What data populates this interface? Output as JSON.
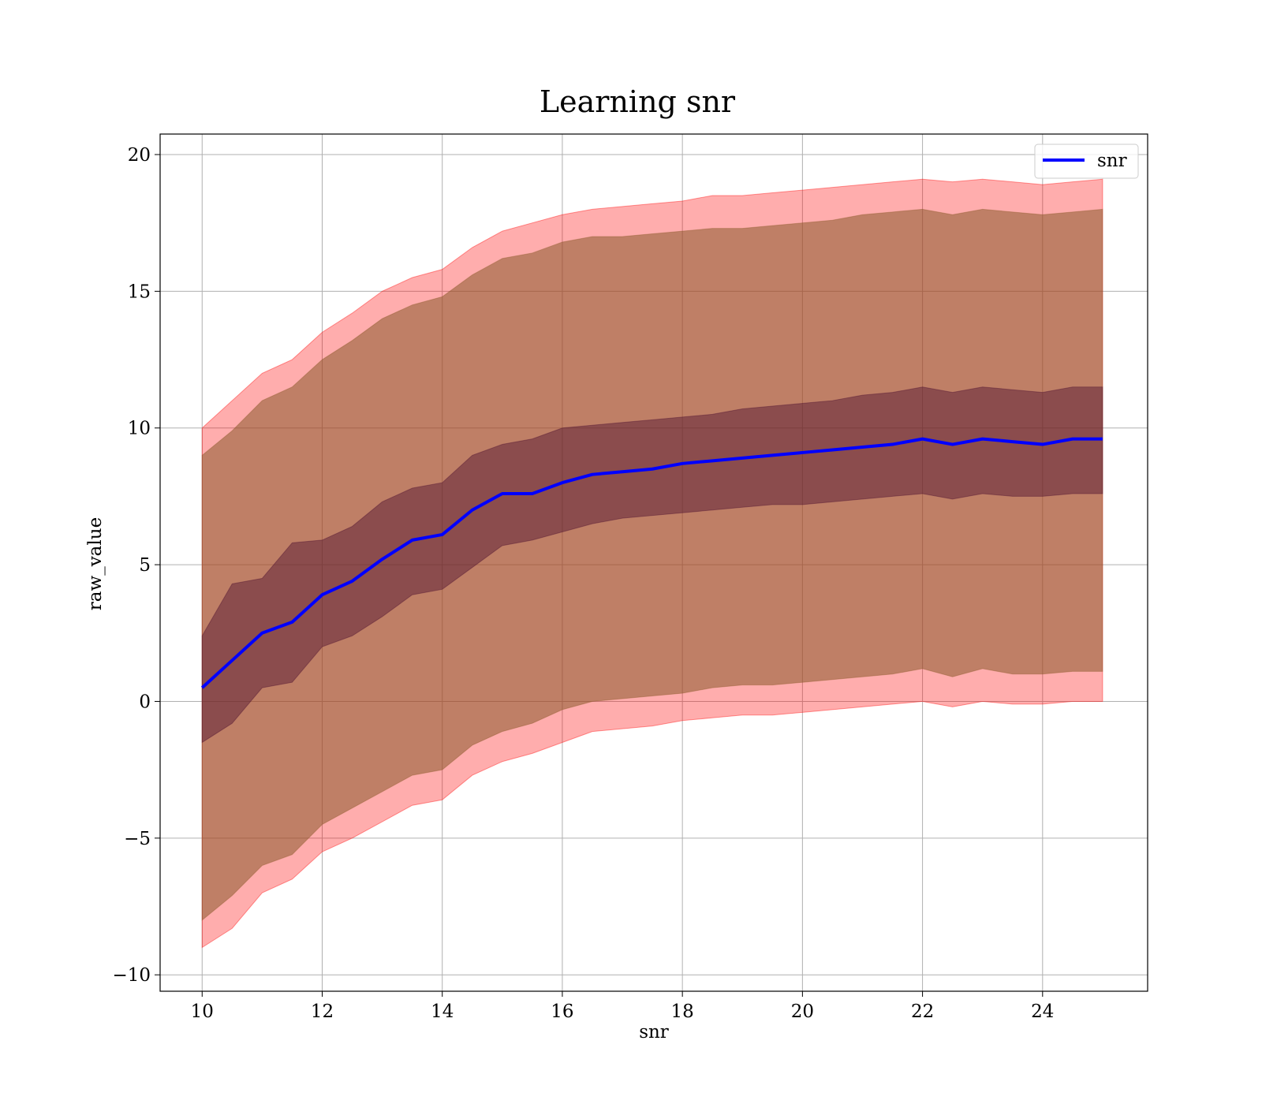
{
  "chart_data": {
    "type": "line",
    "title": "Learning snr",
    "xlabel": "snr",
    "ylabel": "raw_value",
    "xlim": [
      9.3,
      25.75
    ],
    "ylim": [
      -10.6,
      20.75
    ],
    "xticks": [
      10,
      12,
      14,
      16,
      18,
      20,
      22,
      24
    ],
    "yticks": [
      -10,
      -5,
      0,
      5,
      10,
      15,
      20
    ],
    "ytick_labels": [
      "−10",
      "−5",
      "0",
      "5",
      "10",
      "15",
      "20"
    ],
    "grid": true,
    "legend": {
      "placement": "top-right",
      "entries": [
        "snr"
      ]
    },
    "colors": {
      "line": "#0000ff",
      "outer_band": "#ff0000",
      "mid_band": "#8b5a2b",
      "inner_band": "#4b0f2f"
    },
    "x": [
      10,
      10.5,
      11,
      11.5,
      12,
      12.5,
      13,
      13.5,
      14,
      14.5,
      15,
      15.5,
      16,
      16.5,
      17,
      17.5,
      18,
      18.5,
      19,
      19.5,
      20,
      20.5,
      21,
      21.5,
      22,
      22.5,
      23,
      23.5,
      24,
      24.5,
      25
    ],
    "series": [
      {
        "name": "snr",
        "values": [
          0.5,
          1.5,
          2.5,
          2.9,
          3.9,
          4.4,
          5.2,
          5.9,
          6.1,
          7.0,
          7.6,
          7.6,
          8.0,
          8.3,
          8.4,
          8.5,
          8.7,
          8.8,
          8.9,
          9.0,
          9.1,
          9.2,
          9.3,
          9.4,
          9.6,
          9.4,
          9.6,
          9.5,
          9.4,
          9.6,
          9.6
        ]
      }
    ],
    "bands": [
      {
        "role": "outer",
        "upper": [
          10.0,
          11.0,
          12.0,
          12.5,
          13.5,
          14.2,
          15.0,
          15.5,
          15.8,
          16.6,
          17.2,
          17.5,
          17.8,
          18.0,
          18.1,
          18.2,
          18.3,
          18.5,
          18.5,
          18.6,
          18.7,
          18.8,
          18.9,
          19.0,
          19.1,
          19.0,
          19.1,
          19.0,
          18.9,
          19.0,
          19.1
        ],
        "lower": [
          -9.0,
          -8.3,
          -7.0,
          -6.5,
          -5.5,
          -5.0,
          -4.4,
          -3.8,
          -3.6,
          -2.7,
          -2.2,
          -1.9,
          -1.5,
          -1.1,
          -1.0,
          -0.9,
          -0.7,
          -0.6,
          -0.5,
          -0.5,
          -0.4,
          -0.3,
          -0.2,
          -0.1,
          0.0,
          -0.2,
          0.0,
          -0.1,
          -0.1,
          0.0,
          0.0
        ]
      },
      {
        "role": "middle",
        "upper": [
          9.0,
          9.9,
          11.0,
          11.5,
          12.5,
          13.2,
          14.0,
          14.5,
          14.8,
          15.6,
          16.2,
          16.4,
          16.8,
          17.0,
          17.0,
          17.1,
          17.2,
          17.3,
          17.3,
          17.4,
          17.5,
          17.6,
          17.8,
          17.9,
          18.0,
          17.8,
          18.0,
          17.9,
          17.8,
          17.9,
          18.0
        ],
        "lower": [
          -8.0,
          -7.1,
          -6.0,
          -5.6,
          -4.5,
          -3.9,
          -3.3,
          -2.7,
          -2.5,
          -1.6,
          -1.1,
          -0.8,
          -0.3,
          0.0,
          0.1,
          0.2,
          0.3,
          0.5,
          0.6,
          0.6,
          0.7,
          0.8,
          0.9,
          1.0,
          1.2,
          0.9,
          1.2,
          1.0,
          1.0,
          1.1,
          1.1
        ]
      },
      {
        "role": "inner",
        "upper": [
          2.4,
          4.3,
          4.5,
          5.8,
          5.9,
          6.4,
          7.3,
          7.8,
          8.0,
          9.0,
          9.4,
          9.6,
          10.0,
          10.1,
          10.2,
          10.3,
          10.4,
          10.5,
          10.7,
          10.8,
          10.9,
          11.0,
          11.2,
          11.3,
          11.5,
          11.3,
          11.5,
          11.4,
          11.3,
          11.5,
          11.5
        ],
        "lower": [
          -1.5,
          -0.8,
          0.5,
          0.7,
          2.0,
          2.4,
          3.1,
          3.9,
          4.1,
          4.9,
          5.7,
          5.9,
          6.2,
          6.5,
          6.7,
          6.8,
          6.9,
          7.0,
          7.1,
          7.2,
          7.2,
          7.3,
          7.4,
          7.5,
          7.6,
          7.4,
          7.6,
          7.5,
          7.5,
          7.6,
          7.6
        ]
      }
    ]
  }
}
